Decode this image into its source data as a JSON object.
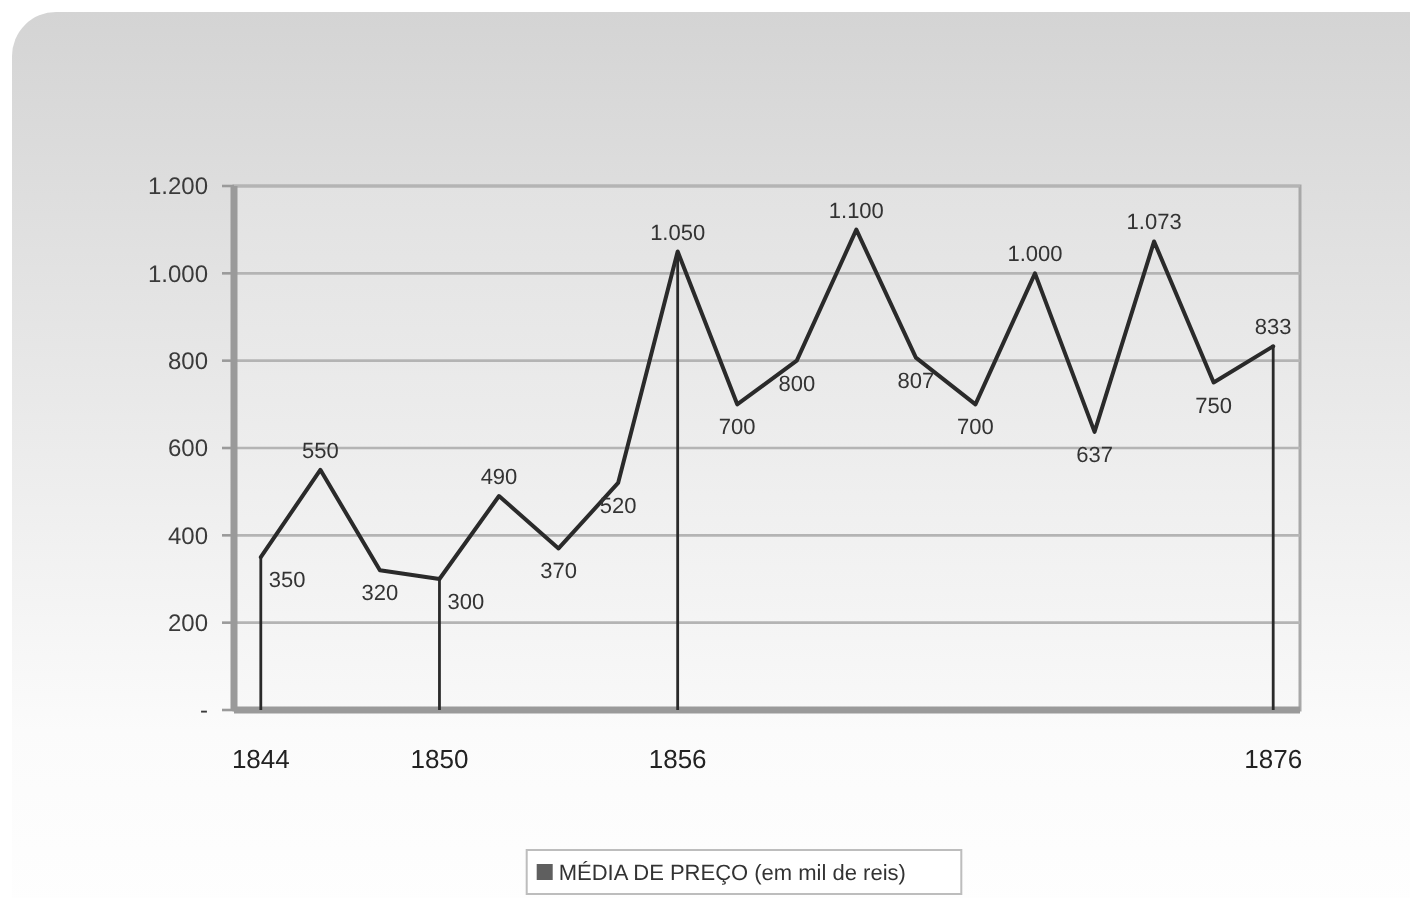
{
  "chart_data": {
    "type": "line",
    "categories": [
      "1844",
      null,
      null,
      "1850",
      null,
      null,
      null,
      "1856",
      null,
      null,
      null,
      null,
      null,
      null,
      null,
      null,
      null,
      "1876"
    ],
    "series": [
      {
        "name": "MÉDIA DE PREÇO (em mil de reis)",
        "color": "#2a2a2a",
        "values": [
          350,
          550,
          320,
          300,
          490,
          370,
          520,
          1050,
          700,
          800,
          1100,
          807,
          700,
          1000,
          637,
          1073,
          750,
          833
        ],
        "value_labels": [
          "350",
          "550",
          "320",
          "300",
          "490",
          "370",
          "520",
          "1.050",
          "700",
          "800",
          "1.100",
          "807",
          "700",
          "1.000",
          "637",
          "1.073",
          "750",
          "833"
        ]
      }
    ],
    "ylim": [
      0,
      1200
    ],
    "yticks": [
      {
        "value": 0,
        "label": "-"
      },
      200,
      400,
      600,
      800,
      {
        "value": 1000,
        "label": "1.000"
      },
      {
        "value": 1200,
        "label": "1.200"
      }
    ],
    "grid": "y",
    "legend": "bottom"
  }
}
